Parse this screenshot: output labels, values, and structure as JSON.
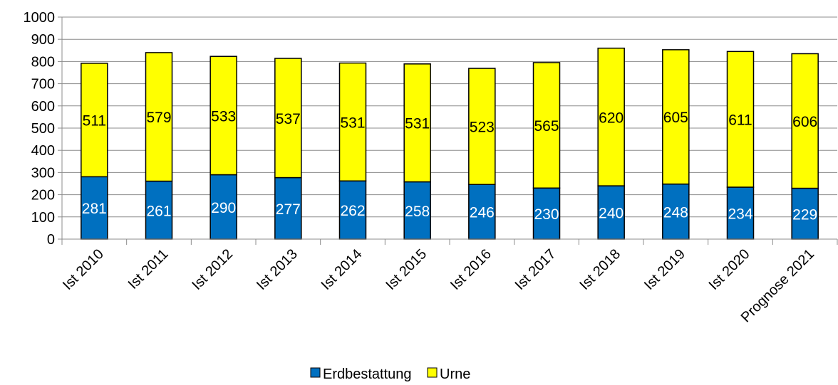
{
  "chart_data": {
    "type": "bar",
    "stacked": true,
    "title": "",
    "xlabel": "",
    "ylabel": "",
    "ylim": [
      0,
      1000
    ],
    "y_ticks": [
      0,
      100,
      200,
      300,
      400,
      500,
      600,
      700,
      800,
      900,
      1000
    ],
    "grid": true,
    "legend_position": "bottom",
    "categories": [
      "Ist 2010",
      "Ist 2011",
      "Ist 2012",
      "Ist 2013",
      "Ist 2014",
      "Ist 2015",
      "Ist 2016",
      "Ist 2017",
      "Ist 2018",
      "Ist 2019",
      "Ist 2020",
      "Prognose 2021"
    ],
    "series": [
      {
        "name": "Erdbestattung",
        "color": "#0070c0",
        "label_color": "#ffffff",
        "values": [
          281,
          261,
          290,
          277,
          262,
          258,
          246,
          230,
          240,
          248,
          234,
          229
        ]
      },
      {
        "name": "Urne",
        "color": "#ffff00",
        "label_color": "#000000",
        "values": [
          511,
          579,
          533,
          537,
          531,
          531,
          523,
          565,
          620,
          605,
          611,
          606
        ]
      }
    ]
  }
}
